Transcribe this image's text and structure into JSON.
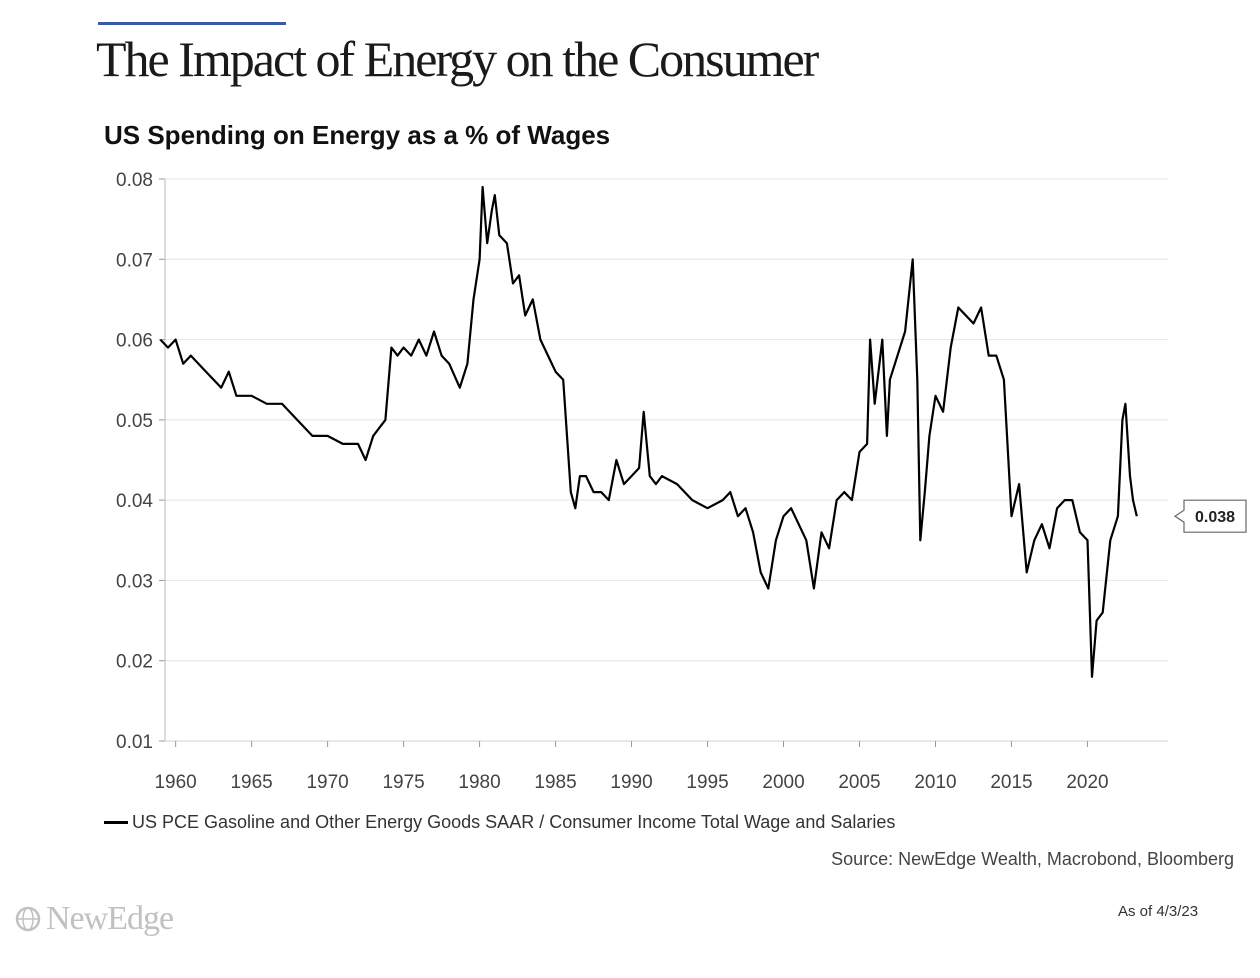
{
  "header": {
    "title": "The Impact of Energy on the Consumer",
    "accent_color": "#3b5aa8"
  },
  "brand": {
    "name": "NewEdge",
    "icon": "globe-icon"
  },
  "notes": {
    "source": "Source: NewEdge Wealth, Macrobond, Bloomberg",
    "as_of": "As of 4/3/23"
  },
  "chart_data": {
    "type": "line",
    "title": "US Spending on Energy as a % of Wages",
    "xlabel": "",
    "ylabel": "",
    "xlim": [
      1959.3,
      2025.3
    ],
    "ylim": [
      0.01,
      0.08
    ],
    "yticks": [
      "0.01",
      "0.02",
      "0.03",
      "0.04",
      "0.05",
      "0.06",
      "0.07",
      "0.08"
    ],
    "xticks": [
      "1960",
      "1965",
      "1970",
      "1975",
      "1980",
      "1985",
      "1990",
      "1995",
      "2000",
      "2005",
      "2010",
      "2015",
      "2020"
    ],
    "grid": true,
    "legend_position": "bottom",
    "last_value_label": "0.038",
    "line_color": "#000000",
    "series": [
      {
        "name": "US PCE Gasoline and Other Energy Goods SAAR / Consumer Income Total Wage and Salaries",
        "x": [
          1959.0,
          1959.5,
          1960.0,
          1960.5,
          1961.0,
          1962.0,
          1963.0,
          1963.5,
          1964.0,
          1965.0,
          1966.0,
          1967.0,
          1968.0,
          1969.0,
          1970.0,
          1971.0,
          1972.0,
          1972.5,
          1973.0,
          1973.8,
          1974.2,
          1974.6,
          1975.0,
          1975.5,
          1976.0,
          1976.5,
          1977.0,
          1977.5,
          1978.0,
          1978.7,
          1979.2,
          1979.6,
          1980.0,
          1980.2,
          1980.5,
          1980.8,
          1981.0,
          1981.3,
          1981.8,
          1982.2,
          1982.6,
          1983.0,
          1983.5,
          1984.0,
          1984.5,
          1985.0,
          1985.5,
          1986.0,
          1986.3,
          1986.6,
          1987.0,
          1987.5,
          1988.0,
          1988.5,
          1989.0,
          1989.5,
          1990.0,
          1990.5,
          1990.8,
          1991.2,
          1991.6,
          1992.0,
          1993.0,
          1994.0,
          1995.0,
          1996.0,
          1996.5,
          1997.0,
          1997.5,
          1998.0,
          1998.5,
          1999.0,
          1999.5,
          2000.0,
          2000.5,
          2001.0,
          2001.5,
          2002.0,
          2002.5,
          2003.0,
          2003.5,
          2004.0,
          2004.5,
          2005.0,
          2005.5,
          2005.7,
          2006.0,
          2006.5,
          2006.8,
          2007.0,
          2007.5,
          2008.0,
          2008.5,
          2008.8,
          2009.0,
          2009.3,
          2009.6,
          2010.0,
          2010.5,
          2011.0,
          2011.5,
          2012.0,
          2012.5,
          2013.0,
          2013.5,
          2014.0,
          2014.5,
          2015.0,
          2015.5,
          2016.0,
          2016.5,
          2017.0,
          2017.5,
          2018.0,
          2018.5,
          2019.0,
          2019.5,
          2020.0,
          2020.3,
          2020.6,
          2021.0,
          2021.5,
          2022.0,
          2022.3,
          2022.5,
          2022.8,
          2023.0,
          2023.25
        ],
        "values": [
          0.06,
          0.059,
          0.06,
          0.057,
          0.058,
          0.056,
          0.054,
          0.056,
          0.053,
          0.053,
          0.052,
          0.052,
          0.05,
          0.048,
          0.048,
          0.047,
          0.047,
          0.045,
          0.048,
          0.05,
          0.059,
          0.058,
          0.059,
          0.058,
          0.06,
          0.058,
          0.061,
          0.058,
          0.057,
          0.054,
          0.057,
          0.065,
          0.07,
          0.079,
          0.072,
          0.076,
          0.078,
          0.073,
          0.072,
          0.067,
          0.068,
          0.063,
          0.065,
          0.06,
          0.058,
          0.056,
          0.055,
          0.041,
          0.039,
          0.043,
          0.043,
          0.041,
          0.041,
          0.04,
          0.045,
          0.042,
          0.043,
          0.044,
          0.051,
          0.043,
          0.042,
          0.043,
          0.042,
          0.04,
          0.039,
          0.04,
          0.041,
          0.038,
          0.039,
          0.036,
          0.031,
          0.029,
          0.035,
          0.038,
          0.039,
          0.037,
          0.035,
          0.029,
          0.036,
          0.034,
          0.04,
          0.041,
          0.04,
          0.046,
          0.047,
          0.06,
          0.052,
          0.06,
          0.048,
          0.055,
          0.058,
          0.061,
          0.07,
          0.055,
          0.035,
          0.041,
          0.048,
          0.053,
          0.051,
          0.059,
          0.064,
          0.063,
          0.062,
          0.064,
          0.058,
          0.058,
          0.055,
          0.038,
          0.042,
          0.031,
          0.035,
          0.037,
          0.034,
          0.039,
          0.04,
          0.04,
          0.036,
          0.035,
          0.018,
          0.025,
          0.026,
          0.035,
          0.038,
          0.05,
          0.052,
          0.043,
          0.04,
          0.038
        ]
      }
    ]
  }
}
